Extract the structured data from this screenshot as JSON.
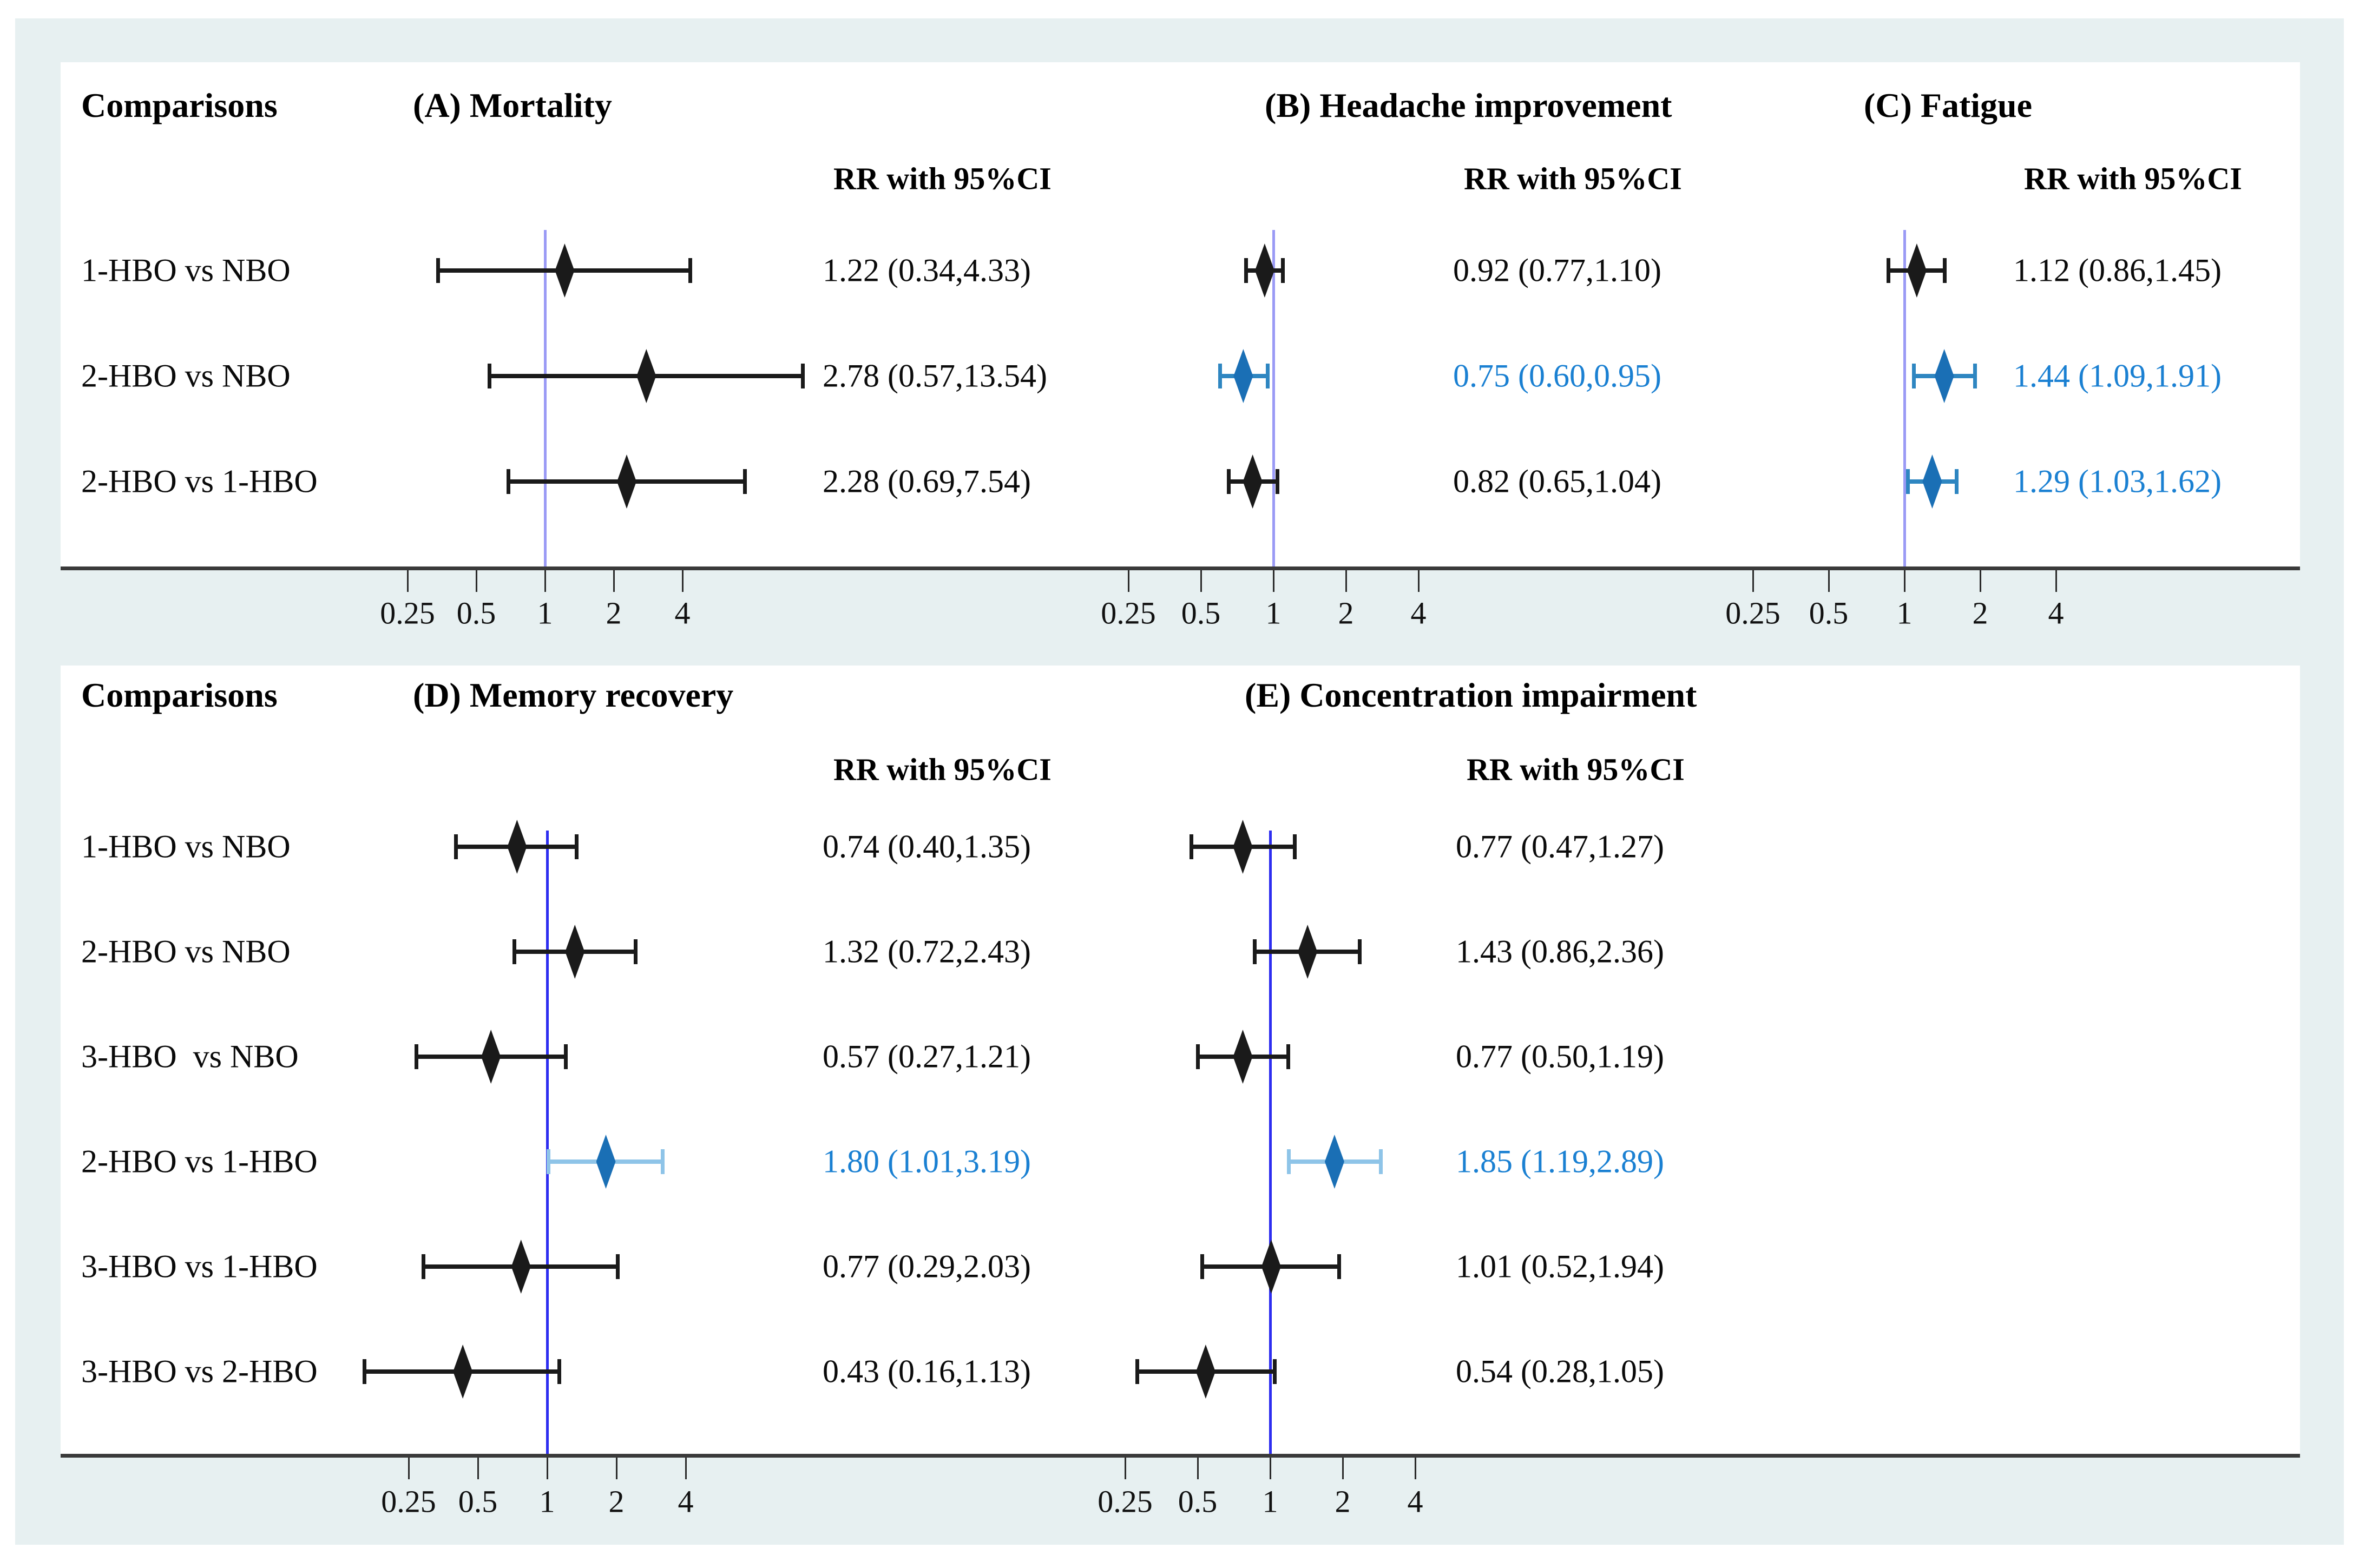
{
  "figure": {
    "background_color": "#e7f0f1",
    "panel_color": "#ffffff",
    "axis_color": "#3a3a3a",
    "nonsig_color": "#1a1a1a",
    "sig_diamond_color": "#1a6fb5",
    "sig_whisker_top_color": "#2e86c1",
    "sig_whisker_bottom_color": "#8ec4e8",
    "sig_text_color": "#1a80d2",
    "ref_line_top_color": "#9a9af5",
    "ref_line_bottom_color": "#2d2df0"
  },
  "chart_data": [
    {
      "type": "forest",
      "section": "top",
      "comparisons_label": "Comparisons",
      "tick_labels": [
        "0.25",
        "0.5",
        "1",
        "2",
        "4"
      ],
      "tick_values": [
        0.25,
        0.5,
        1,
        2,
        4
      ],
      "x_scale": "log2",
      "xlim": [
        0.2,
        16
      ],
      "ref_value": 1,
      "row_labels": [
        "1-HBO vs NBO",
        "2-HBO vs NBO",
        "2-HBO vs 1-HBO"
      ],
      "panels": [
        {
          "key": "A",
          "title": "(A) Mortality",
          "value_header": "RR with 95%CI",
          "rows": [
            {
              "label": "1-HBO vs NBO",
              "rr": 1.22,
              "lo": 0.34,
              "hi": 4.33,
              "text": "1.22 (0.34,4.33)",
              "significant": false
            },
            {
              "label": "2-HBO vs NBO",
              "rr": 2.78,
              "lo": 0.57,
              "hi": 13.54,
              "text": "2.78 (0.57,13.54)",
              "significant": false
            },
            {
              "label": "2-HBO vs 1-HBO",
              "rr": 2.28,
              "lo": 0.69,
              "hi": 7.54,
              "text": "2.28 (0.69,7.54)",
              "significant": false
            }
          ]
        },
        {
          "key": "B",
          "title": "(B) Headache improvement",
          "value_header": "RR with 95%CI",
          "rows": [
            {
              "label": "1-HBO vs NBO",
              "rr": 0.92,
              "lo": 0.77,
              "hi": 1.1,
              "text": "0.92 (0.77,1.10)",
              "significant": false
            },
            {
              "label": "2-HBO vs NBO",
              "rr": 0.75,
              "lo": 0.6,
              "hi": 0.95,
              "text": "0.75 (0.60,0.95)",
              "significant": true
            },
            {
              "label": "2-HBO vs 1-HBO",
              "rr": 0.82,
              "lo": 0.65,
              "hi": 1.04,
              "text": "0.82 (0.65,1.04)",
              "significant": false
            }
          ]
        },
        {
          "key": "C",
          "title": "(C) Fatigue",
          "value_header": "RR with 95%CI",
          "rows": [
            {
              "label": "1-HBO vs NBO",
              "rr": 1.12,
              "lo": 0.86,
              "hi": 1.45,
              "text": "1.12 (0.86,1.45)",
              "significant": false
            },
            {
              "label": "2-HBO vs NBO",
              "rr": 1.44,
              "lo": 1.09,
              "hi": 1.91,
              "text": "1.44 (1.09,1.91)",
              "significant": true
            },
            {
              "label": "2-HBO vs 1-HBO",
              "rr": 1.29,
              "lo": 1.03,
              "hi": 1.62,
              "text": "1.29 (1.03,1.62)",
              "significant": true
            }
          ]
        }
      ]
    },
    {
      "type": "forest",
      "section": "bottom",
      "comparisons_label": "Comparisons",
      "tick_labels": [
        "0.25",
        "0.5",
        "1",
        "2",
        "4"
      ],
      "tick_values": [
        0.25,
        0.5,
        1,
        2,
        4
      ],
      "x_scale": "log2",
      "xlim": [
        0.14,
        8
      ],
      "ref_value": 1,
      "row_labels": [
        "1-HBO vs NBO",
        "2-HBO vs NBO",
        "3-HBO  vs NBO",
        "2-HBO vs 1-HBO",
        "3-HBO vs 1-HBO",
        "3-HBO vs 2-HBO"
      ],
      "panels": [
        {
          "key": "D",
          "title": "(D) Memory recovery",
          "value_header": "RR with 95%CI",
          "rows": [
            {
              "label": "1-HBO vs NBO",
              "rr": 0.74,
              "lo": 0.4,
              "hi": 1.35,
              "text": "0.74 (0.40,1.35)",
              "significant": false
            },
            {
              "label": "2-HBO vs NBO",
              "rr": 1.32,
              "lo": 0.72,
              "hi": 2.43,
              "text": "1.32 (0.72,2.43)",
              "significant": false
            },
            {
              "label": "3-HBO  vs NBO",
              "rr": 0.57,
              "lo": 0.27,
              "hi": 1.21,
              "text": "0.57 (0.27,1.21)",
              "significant": false
            },
            {
              "label": "2-HBO vs 1-HBO",
              "rr": 1.8,
              "lo": 1.01,
              "hi": 3.19,
              "text": "1.80 (1.01,3.19)",
              "significant": true
            },
            {
              "label": "3-HBO vs 1-HBO",
              "rr": 0.77,
              "lo": 0.29,
              "hi": 2.03,
              "text": "0.77 (0.29,2.03)",
              "significant": false
            },
            {
              "label": "3-HBO vs 2-HBO",
              "rr": 0.43,
              "lo": 0.16,
              "hi": 1.13,
              "text": "0.43 (0.16,1.13)",
              "significant": false
            }
          ]
        },
        {
          "key": "E",
          "title": "(E) Concentration impairment",
          "value_header": "RR with 95%CI",
          "rows": [
            {
              "label": "1-HBO vs NBO",
              "rr": 0.77,
              "lo": 0.47,
              "hi": 1.27,
              "text": "0.77 (0.47,1.27)",
              "significant": false
            },
            {
              "label": "2-HBO vs NBO",
              "rr": 1.43,
              "lo": 0.86,
              "hi": 2.36,
              "text": "1.43 (0.86,2.36)",
              "significant": false
            },
            {
              "label": "3-HBO  vs NBO",
              "rr": 0.77,
              "lo": 0.5,
              "hi": 1.19,
              "text": "0.77 (0.50,1.19)",
              "significant": false
            },
            {
              "label": "2-HBO vs 1-HBO",
              "rr": 1.85,
              "lo": 1.19,
              "hi": 2.89,
              "text": "1.85 (1.19,2.89)",
              "significant": true
            },
            {
              "label": "3-HBO vs 1-HBO",
              "rr": 1.01,
              "lo": 0.52,
              "hi": 1.94,
              "text": "1.01 (0.52,1.94)",
              "significant": false
            },
            {
              "label": "3-HBO vs 2-HBO",
              "rr": 0.54,
              "lo": 0.28,
              "hi": 1.05,
              "text": "0.54 (0.28,1.05)",
              "significant": false
            }
          ]
        }
      ]
    }
  ]
}
